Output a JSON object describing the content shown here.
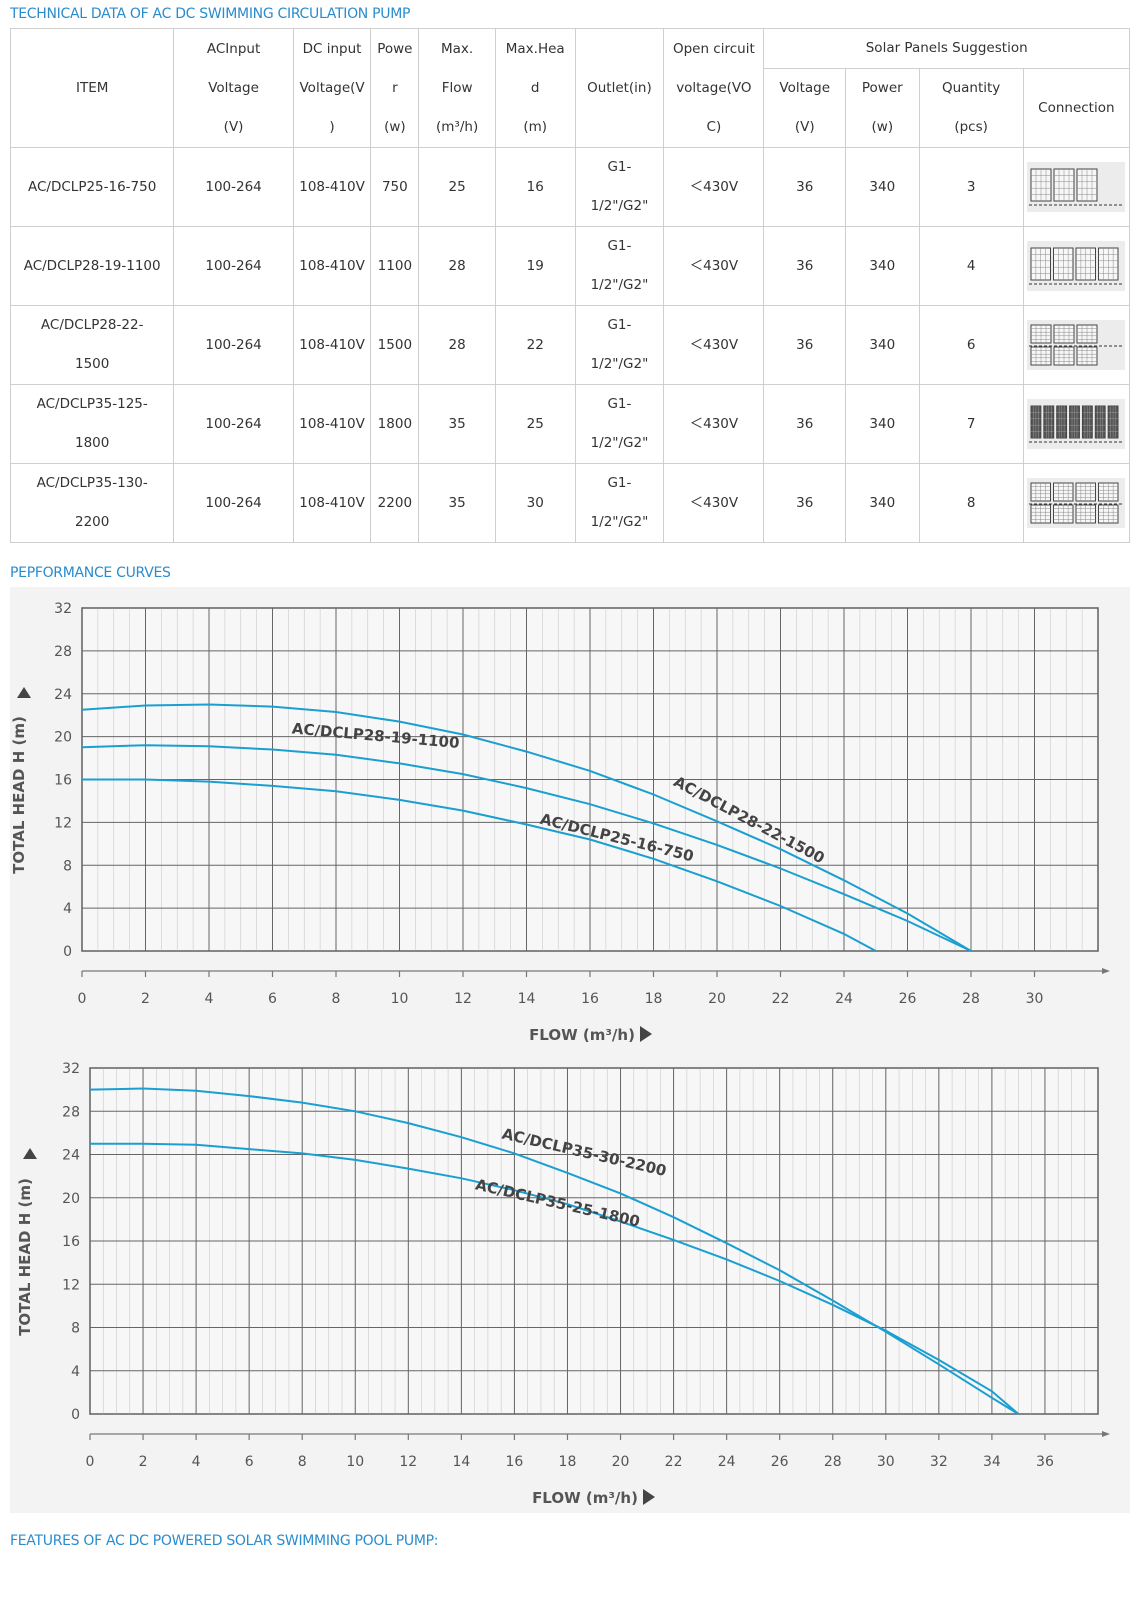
{
  "titles": {
    "technical": "TECHNICAL DATA OF AC DC SWIMMING CIRCULATION PUMP",
    "performance": "PEPFORMANCE CURVES",
    "features": "FEATURES OF AC DC POWERED SOLAR SWIMMING POOL PUMP:"
  },
  "table": {
    "headers": {
      "item": "ITEM",
      "ac_input": [
        "ACInput",
        "Voltage",
        "(V)"
      ],
      "dc_input": [
        "DC input",
        "Voltage(V",
        ")"
      ],
      "power": [
        "Powe",
        "r",
        "(w)"
      ],
      "max_flow": [
        "Max.",
        "Flow",
        "(m³/h)"
      ],
      "max_head": [
        "Max.Hea",
        "d",
        "(m)"
      ],
      "outlet": "Outlet(in)",
      "open_circuit": [
        "Open circuit",
        "voltage(VO",
        "C)"
      ],
      "solar_group": "Solar Panels Suggestion",
      "sp_voltage": [
        "Voltage",
        "(V)"
      ],
      "sp_power": [
        "Power",
        "(w)"
      ],
      "sp_quantity": [
        "Quantity",
        "(pcs)"
      ],
      "connection": "Connection"
    },
    "rows": [
      {
        "item": [
          "AC/DCLP25-16-750"
        ],
        "ac": "100-264",
        "dc": "108-410V",
        "power": "750",
        "flow": "25",
        "head": "16",
        "outlet": [
          "G1-",
          "1/2\"/G2\""
        ],
        "voc": "＜430V",
        "sp_v": "36",
        "sp_w": "340",
        "qty": "3",
        "panels": 3
      },
      {
        "item": [
          "AC/DCLP28-19-1100"
        ],
        "ac": "100-264",
        "dc": "108-410V",
        "power": "1100",
        "flow": "28",
        "head": "19",
        "outlet": [
          "G1-",
          "1/2\"/G2\""
        ],
        "voc": "＜430V",
        "sp_v": "36",
        "sp_w": "340",
        "qty": "4",
        "panels": 4
      },
      {
        "item": [
          "AC/DCLP28-22-",
          "1500"
        ],
        "ac": "100-264",
        "dc": "108-410V",
        "power": "1500",
        "flow": "28",
        "head": "22",
        "outlet": [
          "G1-",
          "1/2\"/G2\""
        ],
        "voc": "＜430V",
        "sp_v": "36",
        "sp_w": "340",
        "qty": "6",
        "panels": 6
      },
      {
        "item": [
          "AC/DCLP35-125-",
          "1800"
        ],
        "ac": "100-264",
        "dc": "108-410V",
        "power": "1800",
        "flow": "35",
        "head": "25",
        "outlet": [
          "G1-",
          "1/2\"/G2\""
        ],
        "voc": "＜430V",
        "sp_v": "36",
        "sp_w": "340",
        "qty": "7",
        "panels": 7
      },
      {
        "item": [
          "AC/DCLP35-130-",
          "2200"
        ],
        "ac": "100-264",
        "dc": "108-410V",
        "power": "2200",
        "flow": "35",
        "head": "30",
        "outlet": [
          "G1-",
          "1/2\"/G2\""
        ],
        "voc": "＜430V",
        "sp_v": "36",
        "sp_w": "340",
        "qty": "8",
        "panels": 8
      }
    ]
  },
  "colors": {
    "accent": "#2a8ccd",
    "curve": "#1a9fd1",
    "grid": "#555555",
    "bg": "#f3f3f3"
  },
  "chart_data": [
    {
      "type": "line",
      "xlabel": "FLOW (m³/h)",
      "ylabel": "TOTAL HEAD H (m)",
      "xlim": [
        0,
        32
      ],
      "ylim": [
        0,
        32
      ],
      "xticks": [
        0,
        2,
        4,
        6,
        8,
        10,
        12,
        14,
        16,
        18,
        20,
        22,
        24,
        26,
        28,
        30
      ],
      "yticks": [
        0,
        4,
        8,
        12,
        16,
        20,
        24,
        28,
        32
      ],
      "grid": true,
      "series": [
        {
          "name": "AC/DCLP28-22-1500",
          "x": [
            0,
            2,
            4,
            6,
            8,
            10,
            12,
            14,
            16,
            18,
            20,
            22,
            24,
            26,
            28
          ],
          "y": [
            22.5,
            22.9,
            23.0,
            22.8,
            22.3,
            21.4,
            20.2,
            18.6,
            16.8,
            14.6,
            12.1,
            9.5,
            6.6,
            3.5,
            0
          ]
        },
        {
          "name": "AC/DCLP28-19-1100",
          "x": [
            0,
            2,
            4,
            6,
            8,
            10,
            12,
            14,
            16,
            18,
            20,
            22,
            24,
            26,
            28
          ],
          "y": [
            19.0,
            19.2,
            19.1,
            18.8,
            18.3,
            17.5,
            16.5,
            15.2,
            13.7,
            11.9,
            9.9,
            7.7,
            5.3,
            2.8,
            0
          ]
        },
        {
          "name": "AC/DCLP25-16-750",
          "x": [
            0,
            2,
            4,
            6,
            8,
            10,
            12,
            14,
            16,
            18,
            20,
            22,
            24,
            25
          ],
          "y": [
            16.0,
            16.0,
            15.8,
            15.4,
            14.9,
            14.1,
            13.1,
            11.8,
            10.4,
            8.6,
            6.5,
            4.2,
            1.6,
            0
          ]
        }
      ]
    },
    {
      "type": "line",
      "xlabel": "FLOW (m³/h)",
      "ylabel": "TOTAL HEAD H (m)",
      "xlim": [
        0,
        38
      ],
      "ylim": [
        0,
        32
      ],
      "xticks": [
        0,
        2,
        4,
        6,
        8,
        10,
        12,
        14,
        16,
        18,
        20,
        22,
        24,
        26,
        28,
        30,
        32,
        34,
        36
      ],
      "yticks": [
        0,
        4,
        8,
        12,
        16,
        20,
        24,
        28,
        32
      ],
      "grid": true,
      "series": [
        {
          "name": "AC/DCLP35-30-2200",
          "x": [
            0,
            2,
            4,
            6,
            8,
            10,
            12,
            14,
            16,
            18,
            20,
            22,
            24,
            26,
            28,
            30,
            32,
            34,
            35
          ],
          "y": [
            30.0,
            30.1,
            29.9,
            29.4,
            28.8,
            28.0,
            26.9,
            25.6,
            24.1,
            22.3,
            20.4,
            18.2,
            15.8,
            13.3,
            10.5,
            7.6,
            4.6,
            1.5,
            0
          ]
        },
        {
          "name": "AC/DCLP35-25-1800",
          "x": [
            0,
            2,
            4,
            6,
            8,
            10,
            12,
            14,
            16,
            18,
            20,
            22,
            24,
            26,
            28,
            30,
            32,
            34,
            35
          ],
          "y": [
            25.0,
            25.0,
            24.9,
            24.5,
            24.1,
            23.5,
            22.7,
            21.8,
            20.7,
            19.4,
            17.8,
            16.1,
            14.3,
            12.3,
            10.1,
            7.7,
            5.0,
            2.1,
            0
          ]
        }
      ]
    }
  ]
}
